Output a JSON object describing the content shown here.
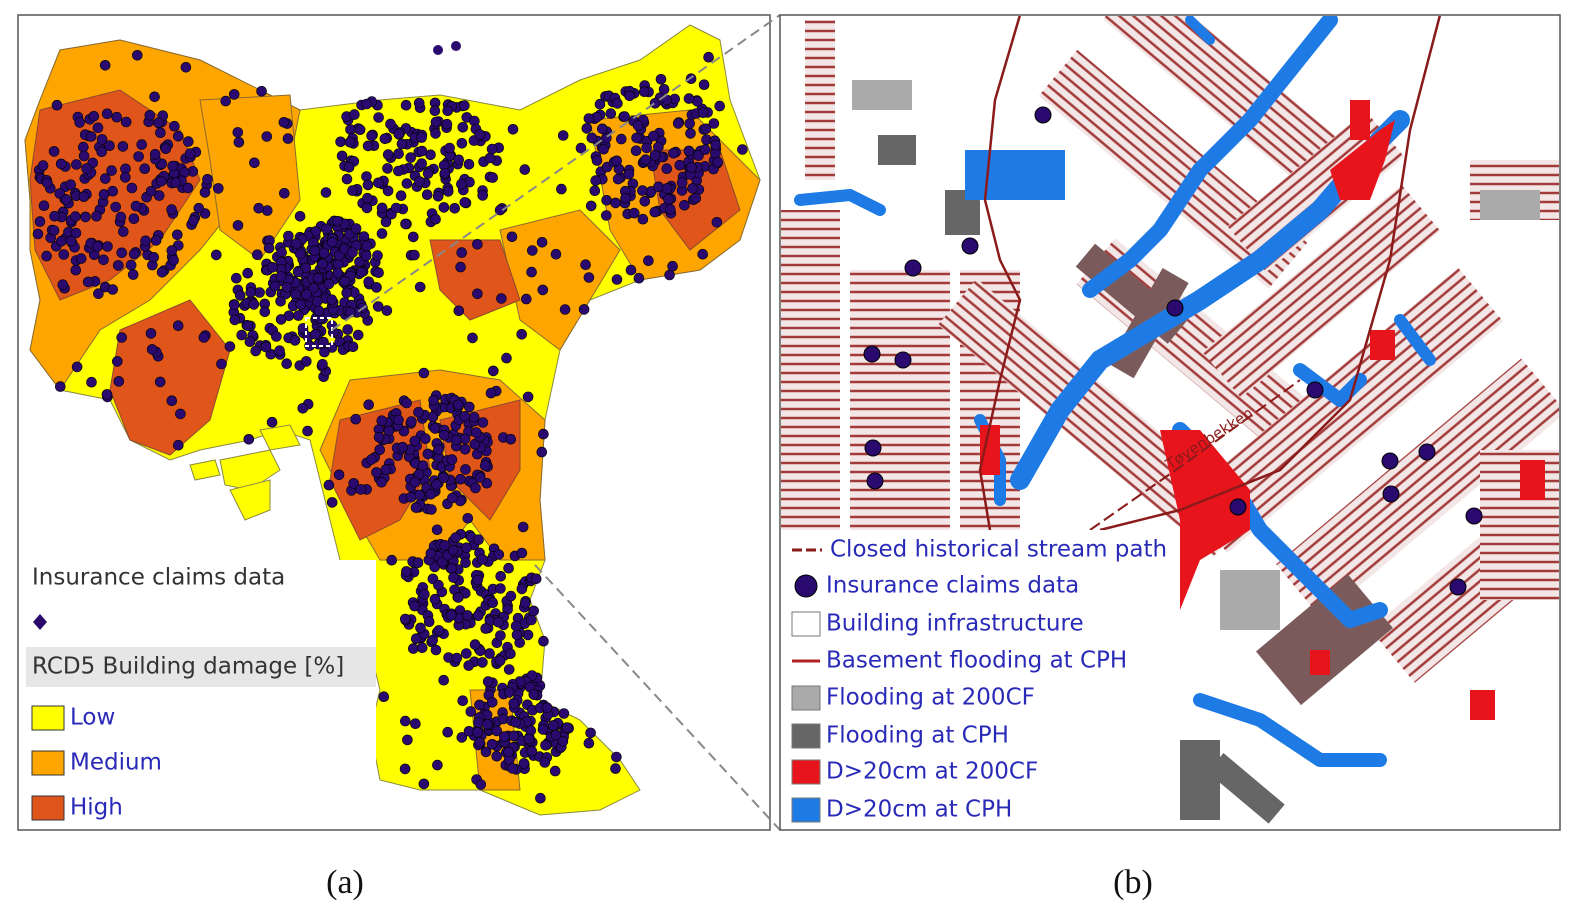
{
  "panel_a": {
    "caption": "(a)",
    "legend": {
      "claims_title": "Insurance claims data",
      "damage_title": "RCD5 Building damage [%]",
      "classes": [
        {
          "label": "Low",
          "color": "#ffff00"
        },
        {
          "label": "Medium",
          "color": "#ffa500"
        },
        {
          "label": "High",
          "color": "#e0561a"
        }
      ]
    }
  },
  "panel_b": {
    "caption": "(b)",
    "stream_label": "Tøyenbekken",
    "legend": [
      {
        "label": "Closed historical stream path",
        "color": "#8b1a1a"
      },
      {
        "label": "Insurance claims data",
        "color": "#2a0a6e"
      },
      {
        "label": "Building infrastructure",
        "color": "#ffffff"
      },
      {
        "label": "Basement flooding at CPH",
        "color": "#b22222"
      },
      {
        "label": "Flooding at 200CF",
        "color": "#aaaaaa"
      },
      {
        "label": "Flooding at CPH",
        "color": "#666666"
      },
      {
        "label": "D>20cm at 200CF",
        "color": "#e8141c"
      },
      {
        "label": "D>20cm at CPH",
        "color": "#1e7be6"
      }
    ]
  }
}
